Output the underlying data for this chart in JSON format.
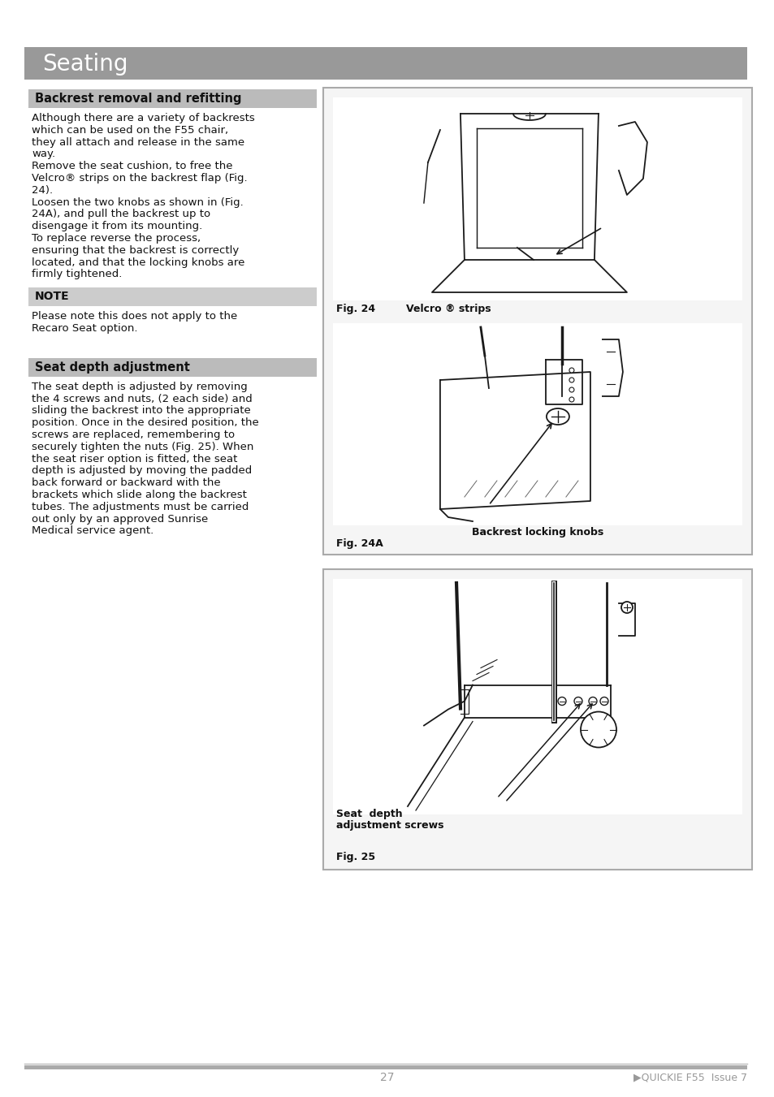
{
  "title": "Seating",
  "title_bg": "#999999",
  "title_color": "#ffffff",
  "title_fontsize": 20,
  "page_bg": "#ffffff",
  "section1_header": "Backrest removal and refitting",
  "section1_header_bg": "#bbbbbb",
  "section1_header_fontsize": 10.5,
  "section1_text_lines": [
    "Although there are a variety of backrests",
    "which can be used on the F55 chair,",
    "they all attach and release in the same",
    "way.",
    "Remove the seat cushion, to free the",
    "Velcro® strips on the backrest flap (Fig.",
    "24).",
    "Loosen the two knobs as shown in (Fig.",
    "24A), and pull the backrest up to",
    "disengage it from its mounting.",
    "To replace reverse the process,",
    "ensuring that the backrest is correctly",
    "located, and that the locking knobs are",
    "firmly tightened."
  ],
  "note_header": "NOTE",
  "note_header_bg": "#cccccc",
  "note_text_lines": [
    "Please note this does not apply to the",
    "Recaro Seat option."
  ],
  "section2_header": "Seat depth adjustment",
  "section2_header_bg": "#bbbbbb",
  "section2_header_fontsize": 10.5,
  "section2_text_lines": [
    "The seat depth is adjusted by removing",
    "the 4 screws and nuts, (2 each side) and",
    "sliding the backrest into the appropriate",
    "position. Once in the desired position, the",
    "screws are replaced, remembering to",
    "securely tighten the nuts (Fig. 25). When",
    "the seat riser option is fitted, the seat",
    "depth is adjusted by moving the padded",
    "back forward or backward with the",
    "brackets which slide along the backrest",
    "tubes. The adjustments must be carried",
    "out only by an approved Sunrise",
    "Medical service agent."
  ],
  "fig24_caption": "Fig. 24",
  "fig24_velcro": "Velcro ® strips",
  "fig24A_caption": "Fig. 24A",
  "fig24A_label": "Backrest locking knobs",
  "fig25_caption": "Fig. 25",
  "fig25_label1": "Seat  depth",
  "fig25_label2": "adjustment screws",
  "page_number": "27",
  "footer_right": "▶QUICKIE F55  Issue 7",
  "body_fontsize": 9.5,
  "caption_fontsize": 9,
  "box_border_color": "#aaaaaa",
  "text_color": "#111111",
  "gray_medium": "#999999",
  "gray_light": "#cccccc"
}
